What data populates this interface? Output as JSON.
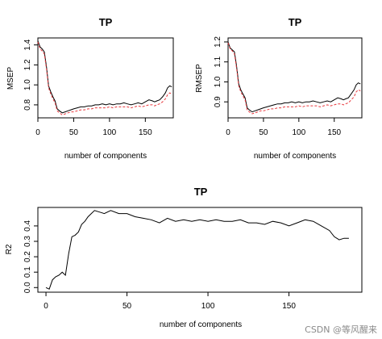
{
  "chart_data": [
    {
      "type": "line",
      "title": "TP",
      "xlabel": "number of components",
      "ylabel": "MSEP",
      "xlim": [
        0,
        189
      ],
      "ylim": [
        0.67,
        1.47
      ],
      "xticks": [
        0,
        50,
        100,
        150
      ],
      "yticks": [
        0.8,
        1.0,
        1.2,
        1.4
      ],
      "ytick_labels": [
        "0.8",
        "1.0",
        "1.2",
        "1.4"
      ],
      "grid": false,
      "series": [
        {
          "color": "#000000",
          "dash": "solid",
          "x": [
            0,
            3,
            6,
            9,
            12,
            15,
            18,
            21,
            24,
            27,
            30,
            34,
            38,
            42,
            46,
            50,
            55,
            60,
            65,
            70,
            75,
            80,
            85,
            90,
            95,
            100,
            105,
            110,
            115,
            120,
            125,
            130,
            135,
            140,
            145,
            150,
            155,
            160,
            163,
            166,
            170,
            174,
            178,
            181,
            184,
            187
          ],
          "y": [
            1.44,
            1.38,
            1.36,
            1.33,
            1.18,
            0.99,
            0.93,
            0.88,
            0.84,
            0.76,
            0.74,
            0.72,
            0.73,
            0.74,
            0.75,
            0.76,
            0.77,
            0.78,
            0.78,
            0.79,
            0.79,
            0.8,
            0.8,
            0.81,
            0.8,
            0.81,
            0.8,
            0.81,
            0.81,
            0.82,
            0.81,
            0.8,
            0.81,
            0.82,
            0.81,
            0.83,
            0.85,
            0.84,
            0.83,
            0.84,
            0.85,
            0.88,
            0.92,
            0.97,
            0.99,
            0.98
          ]
        },
        {
          "color": "#e8383d",
          "dash": "dashed",
          "x": [
            0,
            3,
            6,
            9,
            12,
            15,
            18,
            21,
            24,
            27,
            30,
            34,
            38,
            42,
            46,
            50,
            55,
            60,
            65,
            70,
            75,
            80,
            85,
            90,
            95,
            100,
            105,
            110,
            115,
            120,
            125,
            130,
            135,
            140,
            145,
            150,
            155,
            160,
            163,
            166,
            170,
            174,
            178,
            181,
            184,
            187
          ],
          "y": [
            1.43,
            1.36,
            1.34,
            1.31,
            1.16,
            0.97,
            0.91,
            0.86,
            0.82,
            0.74,
            0.72,
            0.7,
            0.71,
            0.72,
            0.73,
            0.73,
            0.74,
            0.75,
            0.75,
            0.76,
            0.76,
            0.77,
            0.77,
            0.77,
            0.77,
            0.78,
            0.77,
            0.78,
            0.78,
            0.78,
            0.78,
            0.77,
            0.78,
            0.79,
            0.78,
            0.79,
            0.8,
            0.8,
            0.79,
            0.8,
            0.81,
            0.83,
            0.86,
            0.9,
            0.92,
            0.91
          ]
        }
      ]
    },
    {
      "type": "line",
      "title": "TP",
      "xlabel": "number of components",
      "ylabel": "RMSEP",
      "xlim": [
        0,
        189
      ],
      "ylim": [
        0.82,
        1.22
      ],
      "xticks": [
        0,
        50,
        100,
        150
      ],
      "yticks": [
        0.9,
        1.0,
        1.1,
        1.2
      ],
      "ytick_labels": [
        "0.9",
        "1.0",
        "1.1",
        "1.2"
      ],
      "grid": false,
      "series": [
        {
          "color": "#000000",
          "dash": "solid",
          "x": [
            0,
            3,
            6,
            9,
            12,
            15,
            18,
            21,
            24,
            27,
            30,
            34,
            38,
            42,
            46,
            50,
            55,
            60,
            65,
            70,
            75,
            80,
            85,
            90,
            95,
            100,
            105,
            110,
            115,
            120,
            125,
            130,
            135,
            140,
            145,
            150,
            155,
            160,
            163,
            166,
            170,
            174,
            178,
            181,
            184,
            187
          ],
          "y": [
            1.2,
            1.17,
            1.16,
            1.15,
            1.08,
            0.99,
            0.96,
            0.94,
            0.92,
            0.87,
            0.86,
            0.85,
            0.855,
            0.86,
            0.865,
            0.87,
            0.875,
            0.88,
            0.885,
            0.89,
            0.89,
            0.895,
            0.895,
            0.9,
            0.895,
            0.9,
            0.895,
            0.9,
            0.9,
            0.905,
            0.9,
            0.895,
            0.9,
            0.905,
            0.9,
            0.91,
            0.92,
            0.915,
            0.91,
            0.915,
            0.92,
            0.94,
            0.96,
            0.985,
            0.995,
            0.99
          ]
        },
        {
          "color": "#e8383d",
          "dash": "dashed",
          "x": [
            0,
            3,
            6,
            9,
            12,
            15,
            18,
            21,
            24,
            27,
            30,
            34,
            38,
            42,
            46,
            50,
            55,
            60,
            65,
            70,
            75,
            80,
            85,
            90,
            95,
            100,
            105,
            110,
            115,
            120,
            125,
            130,
            135,
            140,
            145,
            150,
            155,
            160,
            163,
            166,
            170,
            174,
            178,
            181,
            184,
            187
          ],
          "y": [
            1.195,
            1.165,
            1.155,
            1.14,
            1.07,
            0.98,
            0.95,
            0.93,
            0.91,
            0.86,
            0.85,
            0.84,
            0.845,
            0.85,
            0.855,
            0.855,
            0.86,
            0.865,
            0.865,
            0.87,
            0.87,
            0.875,
            0.875,
            0.875,
            0.875,
            0.88,
            0.875,
            0.88,
            0.88,
            0.88,
            0.88,
            0.875,
            0.88,
            0.885,
            0.88,
            0.885,
            0.89,
            0.89,
            0.885,
            0.89,
            0.895,
            0.91,
            0.925,
            0.95,
            0.96,
            0.955
          ]
        }
      ]
    },
    {
      "type": "line",
      "title": "TP",
      "xlabel": "number of components",
      "ylabel": "R2",
      "xlim": [
        -5,
        195
      ],
      "ylim": [
        -0.03,
        0.52
      ],
      "xticks": [
        0,
        50,
        100,
        150
      ],
      "yticks": [
        0.0,
        0.1,
        0.2,
        0.3,
        0.4
      ],
      "ytick_labels": [
        "0.0",
        "0.1",
        "0.2",
        "0.3",
        "0.4"
      ],
      "grid": false,
      "series": [
        {
          "color": "#000000",
          "dash": "solid",
          "x": [
            0,
            2,
            4,
            6,
            8,
            10,
            12,
            14,
            16,
            18,
            20,
            22,
            24,
            26,
            28,
            30,
            33,
            36,
            40,
            45,
            50,
            55,
            60,
            65,
            70,
            75,
            80,
            85,
            90,
            95,
            100,
            105,
            110,
            115,
            120,
            125,
            130,
            135,
            140,
            145,
            150,
            155,
            160,
            165,
            170,
            175,
            178,
            181,
            184,
            187
          ],
          "y": [
            0.0,
            -0.01,
            0.05,
            0.07,
            0.08,
            0.1,
            0.08,
            0.22,
            0.33,
            0.34,
            0.36,
            0.41,
            0.43,
            0.46,
            0.48,
            0.5,
            0.49,
            0.48,
            0.5,
            0.48,
            0.48,
            0.46,
            0.45,
            0.44,
            0.42,
            0.45,
            0.43,
            0.44,
            0.43,
            0.44,
            0.43,
            0.44,
            0.43,
            0.43,
            0.44,
            0.42,
            0.42,
            0.41,
            0.43,
            0.42,
            0.4,
            0.42,
            0.44,
            0.43,
            0.4,
            0.37,
            0.33,
            0.31,
            0.32,
            0.32
          ]
        }
      ]
    }
  ],
  "watermark": "CSDN @等风醒来"
}
